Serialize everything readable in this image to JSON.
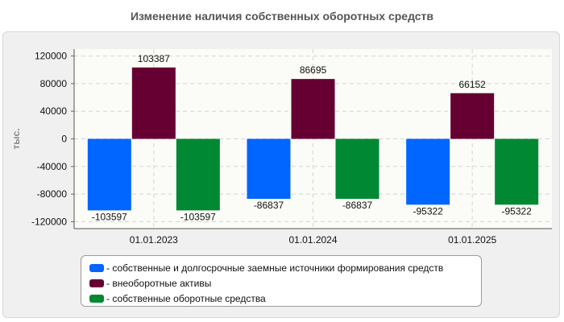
{
  "chart_data": {
    "type": "bar",
    "title": "Изменение наличия собственных оборотных средств",
    "ylabel": "тыс.",
    "xlabel": "",
    "categories": [
      "01.01.2023",
      "01.01.2024",
      "01.01.2025"
    ],
    "ylim": [
      -130000,
      130000
    ],
    "y_ticks": [
      120000,
      80000,
      40000,
      0,
      -40000,
      -80000,
      -120000
    ],
    "grid": true,
    "legend_position": "bottom",
    "series": [
      {
        "name": "- собственные и долгосрочные заемные источники формирования средств",
        "color": "#0066ff",
        "values": [
          -103597,
          -86837,
          -95322
        ]
      },
      {
        "name": "- внеоборотные активы",
        "color": "#660033",
        "values": [
          103387,
          86695,
          66152
        ]
      },
      {
        "name": "- собственные оборотные средства",
        "color": "#008833",
        "values": [
          -103597,
          -86837,
          -95322
        ]
      }
    ]
  }
}
